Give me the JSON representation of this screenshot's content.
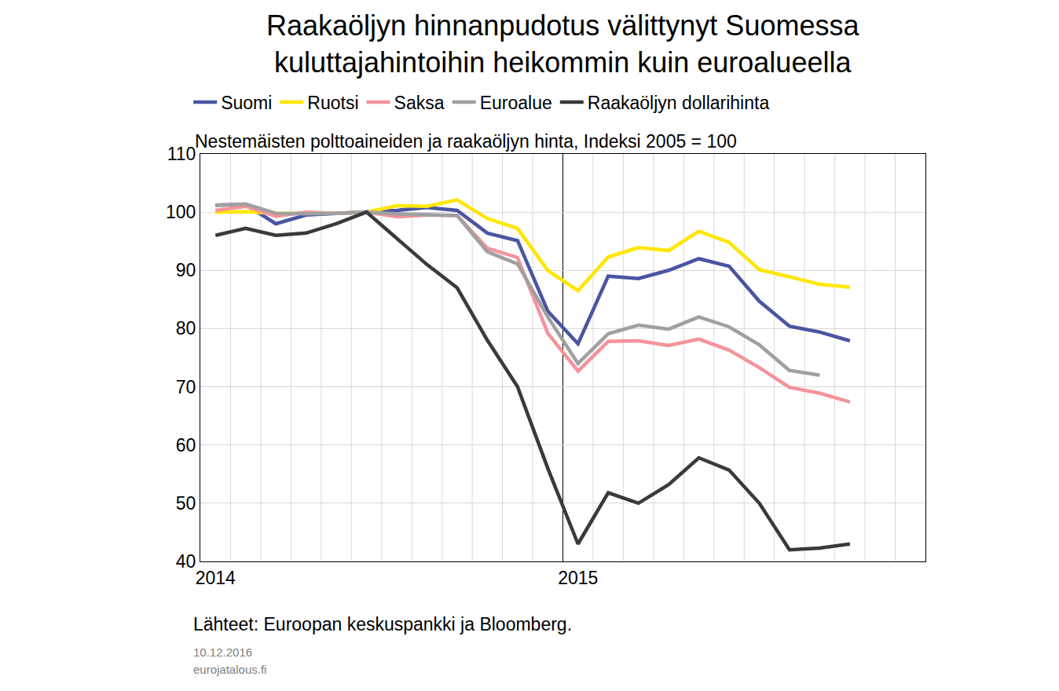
{
  "chart_data": {
    "type": "line",
    "title": "Raakaöljyn hinnanpudotus välittynyt Suomessa\nkuluttajahintoihin heikommin kuin euroalueella",
    "subtitle": "Nestemäisten polttoaineiden ja raakaöljyn hinta, Indeksi 2005 = 100",
    "source": "Lähteet: Euroopan keskuspankki ja Bloomberg.",
    "date": "10.12.2016",
    "publisher": "eurojatalous.fi",
    "categories": [
      "2014",
      null,
      null,
      null,
      null,
      null,
      null,
      null,
      null,
      null,
      null,
      null,
      "2015",
      null,
      null,
      null,
      null,
      null,
      null,
      null,
      null,
      null,
      null,
      null
    ],
    "series": [
      {
        "name": "Suomi",
        "color": "#4a55a2",
        "values": [
          101.2,
          101.3,
          98,
          99.5,
          99.8,
          100,
          100.3,
          100.8,
          100.3,
          96.4,
          95.1,
          83,
          77.4,
          89,
          88.6,
          90,
          92,
          90.7,
          84.7,
          80.4,
          79.4,
          77.9,
          null,
          null
        ]
      },
      {
        "name": "Ruotsi",
        "color": "#ffe600",
        "values": [
          100,
          100.1,
          99.8,
          99.8,
          99.8,
          100,
          101.1,
          101,
          102.1,
          98.9,
          97.2,
          90,
          86.5,
          92.3,
          93.9,
          93.4,
          96.7,
          94.8,
          90.1,
          88.9,
          87.6,
          87.1,
          null,
          null
        ]
      },
      {
        "name": "Saksa",
        "color": "#f4939b",
        "values": [
          100.3,
          101,
          99.3,
          100,
          99.8,
          100,
          99.2,
          99.5,
          99.4,
          93.8,
          92.2,
          79.2,
          72.7,
          77.8,
          77.9,
          77.1,
          78.2,
          76.3,
          73.3,
          69.9,
          68.9,
          67.4,
          null,
          null
        ]
      },
      {
        "name": "Euroalue",
        "color": "#a0a0a0",
        "values": [
          101.2,
          101.4,
          99.8,
          99.7,
          99.8,
          100,
          99.7,
          99.5,
          99.4,
          93.2,
          91.1,
          82,
          74,
          79.1,
          80.6,
          79.9,
          82,
          80.3,
          77.2,
          72.8,
          72,
          null,
          null,
          null
        ]
      },
      {
        "name": "Raakaöljyn dollarihinta",
        "color": "#3a3a3a",
        "values": [
          96,
          97.2,
          96,
          96.4,
          98,
          100,
          95.5,
          91,
          87,
          78,
          70,
          56,
          43,
          51.8,
          50,
          53.2,
          57.8,
          55.7,
          50,
          42,
          42.3,
          43,
          null,
          null
        ]
      }
    ],
    "ylim": [
      40,
      110
    ],
    "yticks": [
      40,
      50,
      60,
      70,
      80,
      90,
      100,
      110
    ],
    "grid": true,
    "legend": "top"
  }
}
